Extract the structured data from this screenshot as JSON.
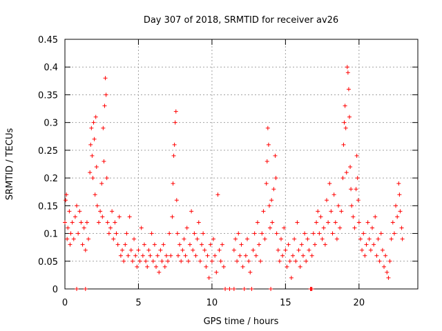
{
  "chart_data": {
    "type": "scatter",
    "title": "Day 307 of 2018, SRMTID for receiver av26",
    "xlabel": "GPS time / hours",
    "ylabel": "SRMTID / TECUs",
    "xlim": [
      0,
      24
    ],
    "ylim": [
      0,
      0.45
    ],
    "xticks": [
      0,
      5,
      10,
      15,
      20
    ],
    "xtick_labels": [
      "0",
      "5",
      "10",
      "15",
      "20"
    ],
    "yticks": [
      0,
      0.05,
      0.1,
      0.15,
      0.2,
      0.25,
      0.3,
      0.35,
      0.4,
      0.45
    ],
    "ytick_labels": [
      "0",
      "0.05",
      "0.1",
      "0.15",
      "0.2",
      "0.25",
      "0.3",
      "0.35",
      "0.4",
      "0.45"
    ],
    "grid": true,
    "marker": "+",
    "color": "#ff0000",
    "series": [
      {
        "name": "SRMTID",
        "points": [
          [
            0.0,
            0.12
          ],
          [
            0.05,
            0.16
          ],
          [
            0.1,
            0.17
          ],
          [
            0.15,
            0.09
          ],
          [
            0.2,
            0.11
          ],
          [
            0.3,
            0.14
          ],
          [
            0.35,
            0.08
          ],
          [
            0.4,
            0.1
          ],
          [
            0.5,
            0.12
          ],
          [
            0.6,
            0.09
          ],
          [
            0.7,
            0.13
          ],
          [
            0.8,
            0.15
          ],
          [
            0.9,
            0.1
          ],
          [
            1.0,
            0.14
          ],
          [
            1.1,
            0.12
          ],
          [
            1.2,
            0.08
          ],
          [
            1.3,
            0.11
          ],
          [
            1.4,
            0.07
          ],
          [
            1.5,
            0.12
          ],
          [
            1.6,
            0.09
          ],
          [
            1.7,
            0.21
          ],
          [
            1.75,
            0.26
          ],
          [
            1.8,
            0.29
          ],
          [
            1.85,
            0.24
          ],
          [
            1.9,
            0.2
          ],
          [
            1.95,
            0.3
          ],
          [
            2.0,
            0.27
          ],
          [
            2.05,
            0.17
          ],
          [
            2.1,
            0.31
          ],
          [
            2.15,
            0.22
          ],
          [
            2.2,
            0.15
          ],
          [
            2.3,
            0.12
          ],
          [
            2.4,
            0.14
          ],
          [
            2.5,
            0.19
          ],
          [
            2.55,
            0.13
          ],
          [
            2.6,
            0.29
          ],
          [
            2.65,
            0.23
          ],
          [
            2.7,
            0.33
          ],
          [
            2.75,
            0.38
          ],
          [
            2.8,
            0.35
          ],
          [
            2.85,
            0.2
          ],
          [
            2.9,
            0.12
          ],
          [
            3.0,
            0.1
          ],
          [
            3.1,
            0.11
          ],
          [
            3.2,
            0.14
          ],
          [
            3.3,
            0.09
          ],
          [
            3.4,
            0.12
          ],
          [
            3.5,
            0.1
          ],
          [
            3.6,
            0.08
          ],
          [
            3.7,
            0.13
          ],
          [
            3.8,
            0.06
          ],
          [
            3.9,
            0.07
          ],
          [
            4.0,
            0.05
          ],
          [
            4.1,
            0.08
          ],
          [
            4.2,
            0.1
          ],
          [
            4.3,
            0.06
          ],
          [
            4.4,
            0.13
          ],
          [
            4.5,
            0.07
          ],
          [
            4.6,
            0.05
          ],
          [
            4.7,
            0.09
          ],
          [
            4.8,
            0.06
          ],
          [
            4.9,
            0.04
          ],
          [
            5.0,
            0.07
          ],
          [
            5.1,
            0.05
          ],
          [
            5.2,
            0.11
          ],
          [
            5.3,
            0.06
          ],
          [
            5.4,
            0.08
          ],
          [
            5.5,
            0.05
          ],
          [
            5.6,
            0.04
          ],
          [
            5.7,
            0.07
          ],
          [
            5.8,
            0.06
          ],
          [
            5.9,
            0.1
          ],
          [
            6.0,
            0.05
          ],
          [
            6.1,
            0.08
          ],
          [
            6.2,
            0.04
          ],
          [
            6.3,
            0.06
          ],
          [
            6.4,
            0.03
          ],
          [
            6.5,
            0.07
          ],
          [
            6.6,
            0.05
          ],
          [
            6.7,
            0.08
          ],
          [
            6.8,
            0.04
          ],
          [
            6.9,
            0.06
          ],
          [
            7.0,
            0.05
          ],
          [
            7.1,
            0.1
          ],
          [
            7.2,
            0.06
          ],
          [
            7.3,
            0.13
          ],
          [
            7.35,
            0.19
          ],
          [
            7.4,
            0.24
          ],
          [
            7.45,
            0.26
          ],
          [
            7.5,
            0.3
          ],
          [
            7.55,
            0.32
          ],
          [
            7.6,
            0.16
          ],
          [
            7.65,
            0.1
          ],
          [
            7.7,
            0.06
          ],
          [
            7.8,
            0.08
          ],
          [
            7.9,
            0.05
          ],
          [
            8.0,
            0.07
          ],
          [
            8.1,
            0.09
          ],
          [
            8.2,
            0.06
          ],
          [
            8.3,
            0.11
          ],
          [
            8.4,
            0.05
          ],
          [
            8.5,
            0.08
          ],
          [
            8.6,
            0.14
          ],
          [
            8.7,
            0.07
          ],
          [
            8.8,
            0.1
          ],
          [
            8.9,
            0.06
          ],
          [
            9.0,
            0.09
          ],
          [
            9.1,
            0.12
          ],
          [
            9.2,
            0.05
          ],
          [
            9.3,
            0.08
          ],
          [
            9.4,
            0.1
          ],
          [
            9.5,
            0.07
          ],
          [
            9.6,
            0.04
          ],
          [
            9.7,
            0.06
          ],
          [
            9.8,
            0.02
          ],
          [
            9.9,
            0.08
          ],
          [
            10.0,
            0.05
          ],
          [
            10.1,
            0.09
          ],
          [
            10.2,
            0.06
          ],
          [
            10.3,
            0.03
          ],
          [
            10.4,
            0.17
          ],
          [
            10.5,
            0.07
          ],
          [
            10.6,
            0.05
          ],
          [
            10.7,
            0.08
          ],
          [
            10.8,
            0.04
          ],
          [
            10.9,
            0.0
          ],
          [
            11.2,
            0.0
          ],
          [
            11.5,
            0.07
          ],
          [
            11.6,
            0.09
          ],
          [
            11.7,
            0.05
          ],
          [
            11.8,
            0.1
          ],
          [
            11.9,
            0.06
          ],
          [
            12.0,
            0.08
          ],
          [
            12.1,
            0.04
          ],
          [
            12.2,
            0.0
          ],
          [
            12.3,
            0.06
          ],
          [
            12.4,
            0.09
          ],
          [
            12.5,
            0.05
          ],
          [
            12.6,
            0.03
          ],
          [
            12.7,
            0.0
          ],
          [
            12.8,
            0.07
          ],
          [
            12.9,
            0.1
          ],
          [
            13.0,
            0.06
          ],
          [
            13.1,
            0.12
          ],
          [
            13.2,
            0.08
          ],
          [
            13.3,
            0.05
          ],
          [
            13.4,
            0.1
          ],
          [
            13.5,
            0.14
          ],
          [
            13.6,
            0.09
          ],
          [
            13.7,
            0.19
          ],
          [
            13.75,
            0.23
          ],
          [
            13.8,
            0.29
          ],
          [
            13.85,
            0.26
          ],
          [
            13.9,
            0.15
          ],
          [
            13.95,
            0.11
          ],
          [
            14.0,
            0.0
          ],
          [
            14.05,
            0.16
          ],
          [
            14.1,
            0.12
          ],
          [
            14.2,
            0.18
          ],
          [
            14.3,
            0.24
          ],
          [
            14.35,
            0.2
          ],
          [
            14.4,
            0.1
          ],
          [
            14.5,
            0.07
          ],
          [
            14.6,
            0.05
          ],
          [
            14.7,
            0.09
          ],
          [
            14.8,
            0.06
          ],
          [
            14.9,
            0.11
          ],
          [
            15.0,
            0.07
          ],
          [
            15.1,
            0.04
          ],
          [
            15.2,
            0.08
          ],
          [
            15.3,
            0.05
          ],
          [
            15.4,
            0.02
          ],
          [
            15.5,
            0.06
          ],
          [
            15.6,
            0.09
          ],
          [
            15.7,
            0.05
          ],
          [
            15.8,
            0.12
          ],
          [
            15.9,
            0.07
          ],
          [
            16.0,
            0.04
          ],
          [
            16.1,
            0.08
          ],
          [
            16.2,
            0.06
          ],
          [
            16.3,
            0.1
          ],
          [
            16.4,
            0.05
          ],
          [
            16.5,
            0.09
          ],
          [
            16.6,
            0.07
          ],
          [
            16.7,
            0.0
          ],
          [
            16.75,
            0.0
          ],
          [
            16.8,
            0.06
          ],
          [
            16.9,
            0.1
          ],
          [
            17.0,
            0.08
          ],
          [
            17.1,
            0.12
          ],
          [
            17.2,
            0.14
          ],
          [
            17.3,
            0.1
          ],
          [
            17.4,
            0.13
          ],
          [
            17.5,
            0.09
          ],
          [
            17.6,
            0.11
          ],
          [
            17.7,
            0.08
          ],
          [
            17.8,
            0.16
          ],
          [
            17.9,
            0.12
          ],
          [
            18.0,
            0.19
          ],
          [
            18.1,
            0.14
          ],
          [
            18.2,
            0.1
          ],
          [
            18.3,
            0.17
          ],
          [
            18.4,
            0.12
          ],
          [
            18.5,
            0.09
          ],
          [
            18.6,
            0.15
          ],
          [
            18.7,
            0.11
          ],
          [
            18.8,
            0.14
          ],
          [
            18.9,
            0.2
          ],
          [
            18.95,
            0.26
          ],
          [
            19.0,
            0.3
          ],
          [
            19.05,
            0.33
          ],
          [
            19.1,
            0.29
          ],
          [
            19.15,
            0.21
          ],
          [
            19.2,
            0.4
          ],
          [
            19.25,
            0.39
          ],
          [
            19.3,
            0.36
          ],
          [
            19.35,
            0.31
          ],
          [
            19.4,
            0.22
          ],
          [
            19.45,
            0.18
          ],
          [
            19.5,
            0.15
          ],
          [
            19.6,
            0.13
          ],
          [
            19.7,
            0.11
          ],
          [
            19.8,
            0.18
          ],
          [
            19.85,
            0.24
          ],
          [
            19.9,
            0.2
          ],
          [
            19.95,
            0.16
          ],
          [
            20.0,
            0.12
          ],
          [
            20.1,
            0.09
          ],
          [
            20.2,
            0.07
          ],
          [
            20.3,
            0.1
          ],
          [
            20.4,
            0.06
          ],
          [
            20.5,
            0.08
          ],
          [
            20.6,
            0.12
          ],
          [
            20.7,
            0.09
          ],
          [
            20.8,
            0.07
          ],
          [
            20.9,
            0.11
          ],
          [
            21.0,
            0.08
          ],
          [
            21.1,
            0.13
          ],
          [
            21.2,
            0.06
          ],
          [
            21.3,
            0.09
          ],
          [
            21.4,
            0.05
          ],
          [
            21.5,
            0.1
          ],
          [
            21.6,
            0.07
          ],
          [
            21.7,
            0.04
          ],
          [
            21.8,
            0.06
          ],
          [
            21.9,
            0.03
          ],
          [
            22.0,
            0.02
          ],
          [
            22.1,
            0.05
          ],
          [
            22.2,
            0.09
          ],
          [
            22.3,
            0.12
          ],
          [
            22.4,
            0.1
          ],
          [
            22.5,
            0.15
          ],
          [
            22.6,
            0.13
          ],
          [
            22.7,
            0.19
          ],
          [
            22.75,
            0.17
          ],
          [
            22.8,
            0.14
          ],
          [
            22.9,
            0.11
          ],
          [
            22.95,
            0.09
          ],
          [
            0.8,
            0.0
          ],
          [
            1.4,
            0.0
          ],
          [
            11.5,
            0.0
          ],
          [
            16.8,
            0.0
          ]
        ]
      }
    ]
  }
}
